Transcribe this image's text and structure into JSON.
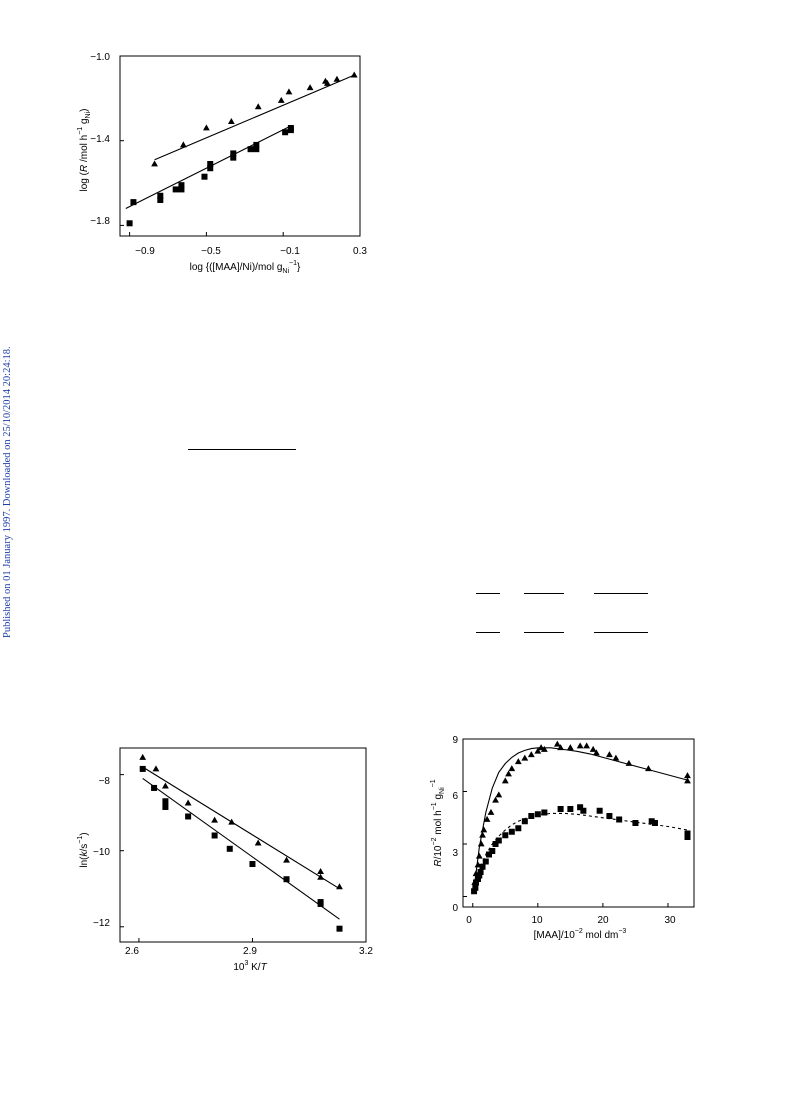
{
  "sidebar_note": "Published on 01 January 1997. Downloaded on 25/10/2014 20:24:18.",
  "chart_data": [
    {
      "type": "scatter",
      "xlim": [
        -0.95,
        0.3
      ],
      "ylim": [
        -1.85,
        -1.0
      ],
      "xticks": [
        -0.9,
        -0.5,
        -0.1,
        0.3
      ],
      "xtick_labels": [
        "−0.9",
        "−0.5",
        "−0.1",
        "0.3"
      ],
      "yticks": [
        -1.0,
        -1.4,
        -1.8
      ],
      "ytick_labels": [
        "−1.0",
        "−1.4",
        "−1.8"
      ],
      "xlabel": "log {([MAA]/Ni)/mol g",
      "xlabel_sub": "Ni",
      "xlabel_sup": "−1",
      "xlabel_end": "}",
      "ylabel": "log (",
      "ylabel_italic": "R",
      "ylabel_mid": " /mol h",
      "ylabel_sup": "−1",
      "ylabel_g": " g",
      "ylabel_sub": "Ni",
      "ylabel_end": ")",
      "series": [
        {
          "marker": "triangle",
          "points": [
            [
              -0.77,
              -1.51
            ],
            [
              -0.62,
              -1.42
            ],
            [
              -0.5,
              -1.34
            ],
            [
              -0.37,
              -1.31
            ],
            [
              -0.23,
              -1.24
            ],
            [
              -0.11,
              -1.21
            ],
            [
              -0.07,
              -1.17
            ],
            [
              0.04,
              -1.15
            ],
            [
              0.12,
              -1.12
            ],
            [
              0.13,
              -1.13
            ],
            [
              0.18,
              -1.11
            ],
            [
              0.27,
              -1.09
            ]
          ],
          "fit": [
            [
              -0.77,
              -1.49
            ],
            [
              0.27,
              -1.09
            ]
          ]
        },
        {
          "marker": "square",
          "points": [
            [
              -0.9,
              -1.79
            ],
            [
              -0.88,
              -1.69
            ],
            [
              -0.74,
              -1.66
            ],
            [
              -0.74,
              -1.68
            ],
            [
              -0.66,
              -1.63
            ],
            [
              -0.63,
              -1.61
            ],
            [
              -0.63,
              -1.63
            ],
            [
              -0.51,
              -1.57
            ],
            [
              -0.48,
              -1.51
            ],
            [
              -0.48,
              -1.53
            ],
            [
              -0.36,
              -1.46
            ],
            [
              -0.36,
              -1.48
            ],
            [
              -0.27,
              -1.44
            ],
            [
              -0.24,
              -1.42
            ],
            [
              -0.24,
              -1.44
            ],
            [
              -0.09,
              -1.36
            ],
            [
              -0.06,
              -1.35
            ],
            [
              -0.06,
              -1.34
            ]
          ],
          "fit": [
            [
              -0.92,
              -1.72
            ],
            [
              -0.06,
              -1.33
            ]
          ]
        }
      ]
    },
    {
      "type": "scatter",
      "xlim": [
        2.55,
        3.2
      ],
      "ylim": [
        -12.4,
        -7.3
      ],
      "xticks": [
        2.6,
        2.9,
        3.2
      ],
      "xtick_labels": [
        "2.6",
        "2.9",
        "3.2"
      ],
      "yticks": [
        -8,
        -10,
        -12
      ],
      "ytick_labels": [
        "−8",
        "−10",
        "−12"
      ],
      "xlabel_sup": "3",
      "xlabel_pre": "10",
      "xlabel_mid": " K/",
      "xlabel_italic": "T",
      "ylabel_pre": "ln(",
      "ylabel_italic": "k",
      "ylabel_mid": "/s",
      "ylabel_sup": "−1",
      "ylabel_end": ")",
      "series": [
        {
          "marker": "triangle",
          "points": [
            [
              2.61,
              -7.55
            ],
            [
              2.645,
              -7.85
            ],
            [
              2.67,
              -8.3
            ],
            [
              2.73,
              -8.75
            ],
            [
              2.8,
              -9.2
            ],
            [
              2.845,
              -9.25
            ],
            [
              2.915,
              -9.8
            ],
            [
              2.99,
              -10.25
            ],
            [
              3.08,
              -10.55
            ],
            [
              3.08,
              -10.7
            ],
            [
              3.13,
              -10.95
            ]
          ],
          "fit": [
            [
              2.61,
              -7.8
            ],
            [
              3.13,
              -11.0
            ]
          ]
        },
        {
          "marker": "square",
          "points": [
            [
              2.61,
              -7.85
            ],
            [
              2.64,
              -8.35
            ],
            [
              2.67,
              -8.7
            ],
            [
              2.67,
              -8.85
            ],
            [
              2.73,
              -9.1
            ],
            [
              2.8,
              -9.6
            ],
            [
              2.84,
              -9.95
            ],
            [
              2.9,
              -10.35
            ],
            [
              2.99,
              -10.75
            ],
            [
              3.08,
              -11.35
            ],
            [
              3.08,
              -11.4
            ],
            [
              3.13,
              -12.05
            ]
          ],
          "fit": [
            [
              2.61,
              -8.1
            ],
            [
              3.13,
              -11.8
            ]
          ]
        }
      ]
    },
    {
      "type": "scatter",
      "xlim": [
        -1.5,
        34
      ],
      "ylim": [
        -0.6,
        9.0
      ],
      "xticks": [
        0,
        10,
        20,
        30
      ],
      "xtick_labels": [
        "0",
        "10",
        "20",
        "30"
      ],
      "yticks": [
        0,
        3,
        6,
        9
      ],
      "ytick_labels": [
        "0",
        "3",
        "6",
        "9"
      ],
      "xlabel": "[MAA]/10",
      "xlabel_sup": "−2",
      "xlabel_end": " mol dm",
      "xlabel_sup2": "−3",
      "ylabel_italic": "R",
      "ylabel_mid": "/10",
      "ylabel_sup": "−2",
      "ylabel_end": " mol h",
      "ylabel_sup2": "−1",
      "ylabel_g": " g",
      "ylabel_sub": "Ni",
      "ylabel_sup3": "−1",
      "series": [
        {
          "marker": "triangle",
          "line_style": "solid",
          "points": [
            [
              0.3,
              0.8
            ],
            [
              0.5,
              1.3
            ],
            [
              0.8,
              1.8
            ],
            [
              1.0,
              2.3
            ],
            [
              1.3,
              3.0
            ],
            [
              1.5,
              3.5
            ],
            [
              1.7,
              3.8
            ],
            [
              2.2,
              4.4
            ],
            [
              2.8,
              4.8
            ],
            [
              3.5,
              5.5
            ],
            [
              4.0,
              5.8
            ],
            [
              5.0,
              6.6
            ],
            [
              5.5,
              7.0
            ],
            [
              6.0,
              7.3
            ],
            [
              7.0,
              7.7
            ],
            [
              8.0,
              7.9
            ],
            [
              9.0,
              8.1
            ],
            [
              10.0,
              8.3
            ],
            [
              10.5,
              8.5
            ],
            [
              11.0,
              8.4
            ],
            [
              13.0,
              8.7
            ],
            [
              13.5,
              8.5
            ],
            [
              15.0,
              8.5
            ],
            [
              16.5,
              8.6
            ],
            [
              17.5,
              8.6
            ],
            [
              18.5,
              8.4
            ],
            [
              19.0,
              8.2
            ],
            [
              21.0,
              8.1
            ],
            [
              22.0,
              7.9
            ],
            [
              24.0,
              7.6
            ],
            [
              27.0,
              7.3
            ],
            [
              33.0,
              6.9
            ],
            [
              33.0,
              6.6
            ]
          ],
          "fit": [
            [
              0.2,
              0.5
            ],
            [
              1,
              2.8
            ],
            [
              2,
              4.8
            ],
            [
              3,
              6.2
            ],
            [
              4,
              7.1
            ],
            [
              5,
              7.6
            ],
            [
              6,
              7.95
            ],
            [
              7,
              8.2
            ],
            [
              8,
              8.35
            ],
            [
              9,
              8.45
            ],
            [
              10,
              8.5
            ],
            [
              12,
              8.5
            ],
            [
              14,
              8.4
            ],
            [
              16,
              8.3
            ],
            [
              18,
              8.15
            ],
            [
              20,
              7.95
            ],
            [
              22,
              7.75
            ],
            [
              24,
              7.55
            ],
            [
              26,
              7.35
            ],
            [
              28,
              7.15
            ],
            [
              30,
              6.95
            ],
            [
              32,
              6.75
            ],
            [
              33,
              6.65
            ]
          ]
        },
        {
          "marker": "square",
          "line_style": "dashed",
          "points": [
            [
              0.2,
              0.3
            ],
            [
              0.4,
              0.5
            ],
            [
              0.5,
              0.8
            ],
            [
              0.8,
              1.0
            ],
            [
              1.0,
              1.2
            ],
            [
              1.2,
              1.4
            ],
            [
              1.5,
              1.7
            ],
            [
              2.0,
              2.0
            ],
            [
              2.5,
              2.4
            ],
            [
              3.0,
              2.6
            ],
            [
              3.5,
              3.0
            ],
            [
              4.0,
              3.2
            ],
            [
              5.0,
              3.5
            ],
            [
              6.0,
              3.7
            ],
            [
              7.0,
              3.9
            ],
            [
              8.0,
              4.3
            ],
            [
              9.0,
              4.6
            ],
            [
              10.0,
              4.7
            ],
            [
              11.0,
              4.8
            ],
            [
              13.5,
              5.0
            ],
            [
              15.0,
              5.0
            ],
            [
              16.5,
              5.1
            ],
            [
              17.0,
              4.9
            ],
            [
              19.5,
              4.9
            ],
            [
              21.0,
              4.6
            ],
            [
              22.5,
              4.4
            ],
            [
              25.0,
              4.2
            ],
            [
              27.5,
              4.3
            ],
            [
              28.0,
              4.2
            ],
            [
              33.0,
              3.6
            ],
            [
              33.0,
              3.4
            ]
          ],
          "fit": [
            [
              0.2,
              0.4
            ],
            [
              1,
              1.5
            ],
            [
              2,
              2.4
            ],
            [
              3,
              3.0
            ],
            [
              4,
              3.45
            ],
            [
              5,
              3.8
            ],
            [
              6,
              4.1
            ],
            [
              7,
              4.3
            ],
            [
              8,
              4.45
            ],
            [
              10,
              4.65
            ],
            [
              12,
              4.75
            ],
            [
              14,
              4.75
            ],
            [
              16,
              4.7
            ],
            [
              18,
              4.6
            ],
            [
              20,
              4.5
            ],
            [
              22,
              4.4
            ],
            [
              24,
              4.3
            ],
            [
              26,
              4.2
            ],
            [
              28,
              4.1
            ],
            [
              30,
              4.0
            ],
            [
              33,
              3.8
            ]
          ]
        }
      ]
    }
  ]
}
